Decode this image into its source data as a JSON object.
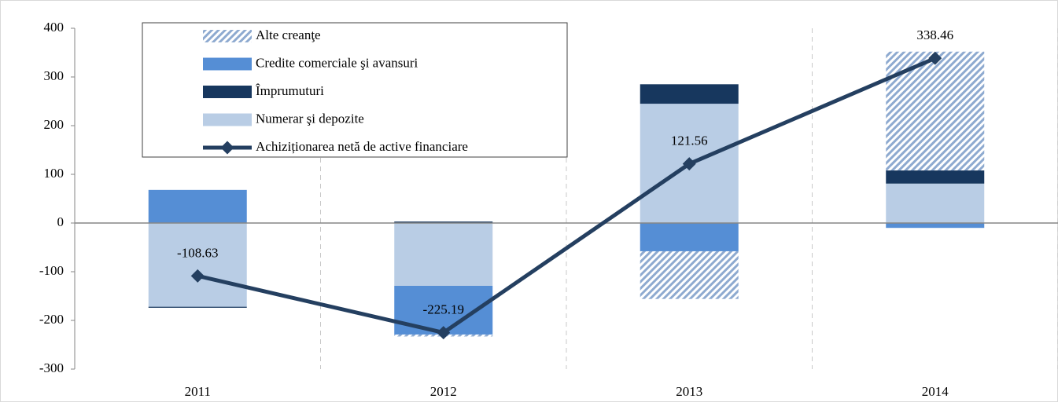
{
  "chart_data": {
    "type": "bar",
    "categories": [
      "2011",
      "2012",
      "2013",
      "2014"
    ],
    "series": [
      {
        "name": "Alte creanţe",
        "color": "#8eaad0",
        "hatch": true,
        "values": [
          0,
          -4,
          -98,
          244
        ]
      },
      {
        "name": "Credite comerciale  şi avansuri",
        "color": "#558ed5",
        "values": [
          68,
          -100,
          -58,
          -10
        ]
      },
      {
        "name": "Împrumuturi",
        "color": "#17375e",
        "values": [
          -2,
          3,
          40,
          27
        ]
      },
      {
        "name": "Numerar şi depozite",
        "color": "#b9cde5",
        "values": [
          -172,
          -129,
          245,
          81
        ]
      },
      {
        "name": "Achiziționarea netă de active financiare",
        "type": "line",
        "color": "#243f60",
        "values": [
          -108.63,
          -225.19,
          121.56,
          338.46
        ]
      }
    ],
    "ylim": [
      -300,
      400
    ],
    "yticks": [
      -300,
      -200,
      -100,
      0,
      100,
      200,
      300,
      400
    ]
  }
}
